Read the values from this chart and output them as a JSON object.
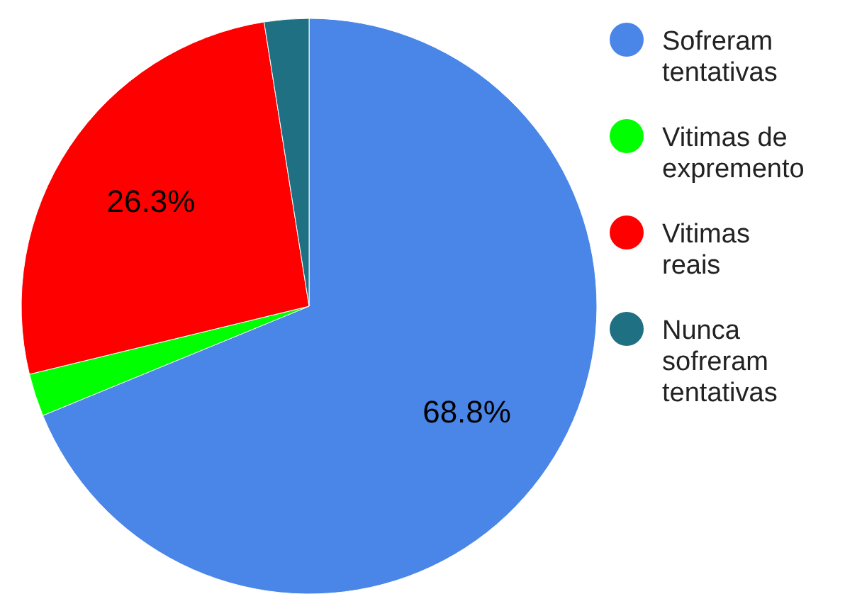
{
  "chart_data": {
    "type": "pie",
    "categories": [
      "Sofreram tentativas",
      "Vitimas de expremento",
      "Vitimas reais",
      "Nunca sofreram tentativas"
    ],
    "values": [
      68.8,
      2.4,
      26.3,
      2.5
    ],
    "colors": [
      "#4a86e8",
      "#00ff00",
      "#ff0000",
      "#1f7083"
    ],
    "value_labels": [
      "68.8%",
      null,
      "26.3%",
      null
    ],
    "legend": "right"
  }
}
